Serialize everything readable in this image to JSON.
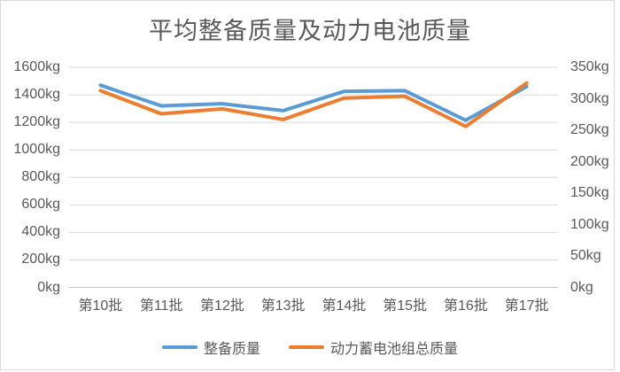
{
  "window": {
    "background": "#ffffff",
    "border_color": "#d9d9d9",
    "text_color": "#595959"
  },
  "chart_data": {
    "type": "line",
    "title": "平均整备质量及动力电池质量",
    "categories": [
      "第10批",
      "第11批",
      "第12批",
      "第13批",
      "第14批",
      "第15批",
      "第16批",
      "第17批"
    ],
    "series": [
      {
        "name": "整备质量",
        "axis": "left",
        "color": "#5B9BD5",
        "values": [
          1470,
          1320,
          1335,
          1285,
          1425,
          1430,
          1215,
          1460
        ]
      },
      {
        "name": "动力蓄电池组总质量",
        "axis": "right",
        "color": "#ED7D31",
        "values": [
          313,
          276,
          284,
          267,
          301,
          304,
          256,
          325
        ]
      }
    ],
    "left_axis": {
      "min": 0,
      "max": 1600,
      "step": 200,
      "unit": "kg",
      "tick_labels": [
        "1600kg",
        "1400kg",
        "1200kg",
        "1000kg",
        "800kg",
        "600kg",
        "400kg",
        "200kg",
        "0kg"
      ]
    },
    "right_axis": {
      "min": 0,
      "max": 350,
      "step": 50,
      "unit": "kg",
      "tick_labels": [
        "350kg",
        "300kg",
        "250kg",
        "200kg",
        "150kg",
        "100kg",
        "50kg",
        "0kg"
      ]
    },
    "grid": true,
    "gridline_color": "#d9d9d9",
    "axisline_color": "#c8c8c8",
    "legend_position": "bottom"
  }
}
